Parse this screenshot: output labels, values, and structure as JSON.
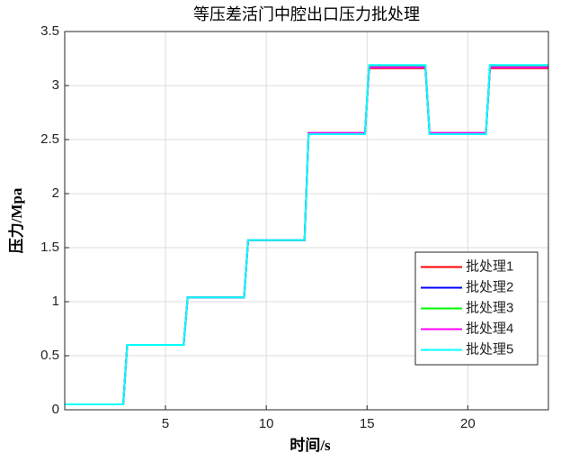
{
  "chart_data": {
    "type": "line",
    "title": "等压差活门中腔出口压力批处理",
    "x_label": "时间/s",
    "y_label": "压力/Mpa",
    "x": [
      0,
      2.9,
      3.1,
      5.9,
      6.1,
      8.9,
      9.1,
      11.9,
      12.1,
      14.9,
      15.1,
      17.9,
      18.1,
      20.9,
      21.1,
      24
    ],
    "series": [
      {
        "name": "批处理1",
        "color": "#ff0000",
        "values": [
          0.05,
          0.05,
          0.6,
          0.6,
          1.04,
          1.04,
          1.57,
          1.57,
          2.56,
          2.56,
          3.16,
          3.16,
          2.56,
          2.56,
          3.16,
          3.16
        ]
      },
      {
        "name": "批处理2",
        "color": "#0000ff",
        "values": [
          0.05,
          0.05,
          0.6,
          0.6,
          1.04,
          1.04,
          1.57,
          1.57,
          2.56,
          2.56,
          3.17,
          3.17,
          2.56,
          2.56,
          3.17,
          3.17
        ]
      },
      {
        "name": "批处理3",
        "color": "#00ff00",
        "values": [
          0.05,
          0.05,
          0.6,
          0.6,
          1.04,
          1.04,
          1.57,
          1.57,
          2.56,
          2.56,
          3.18,
          3.18,
          2.56,
          2.56,
          3.18,
          3.18
        ]
      },
      {
        "name": "批处理4",
        "color": "#ff00ff",
        "values": [
          0.05,
          0.05,
          0.6,
          0.6,
          1.04,
          1.04,
          1.57,
          1.57,
          2.56,
          2.56,
          3.17,
          3.17,
          2.56,
          2.56,
          3.17,
          3.17
        ]
      },
      {
        "name": "批处理5",
        "color": "#00ffff",
        "values": [
          0.05,
          0.05,
          0.6,
          0.6,
          1.04,
          1.04,
          1.57,
          1.57,
          2.55,
          2.55,
          3.19,
          3.19,
          2.55,
          2.55,
          3.19,
          3.19
        ]
      }
    ],
    "xlim": [
      0,
      24
    ],
    "xticks": [
      5,
      10,
      15,
      20
    ],
    "ylim": [
      0,
      3.5
    ],
    "yticks": [
      0,
      0.5,
      1,
      1.5,
      2,
      2.5,
      3,
      3.5
    ],
    "grid": true,
    "legend": "lower right"
  }
}
